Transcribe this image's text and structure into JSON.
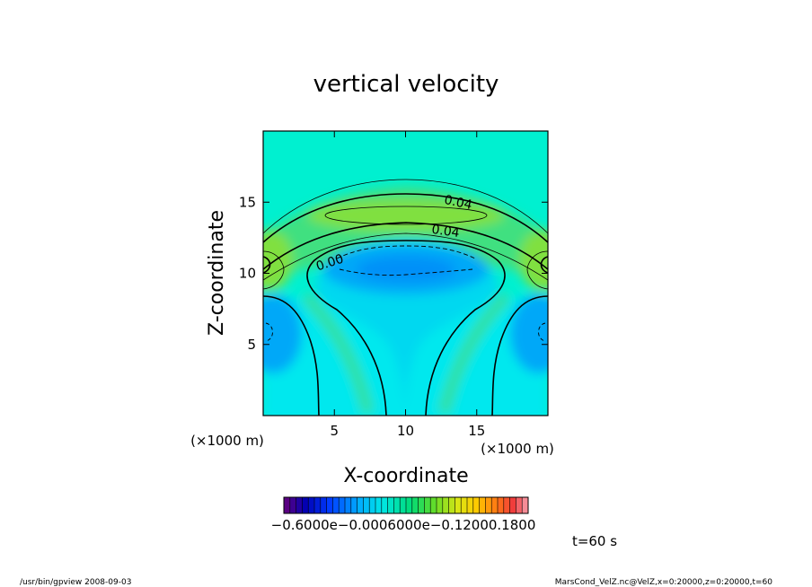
{
  "chart_data": {
    "type": "heatmap",
    "title": "vertical velocity",
    "xlabel": "X-coordinate",
    "ylabel": "Z-coordinate",
    "xunit": "(×1000 m)",
    "yunit": "(×1000 m)",
    "xlim": [
      0,
      20
    ],
    "ylim": [
      0,
      20
    ],
    "xticks": [
      5,
      10,
      15
    ],
    "yticks": [
      5,
      10,
      15
    ],
    "contour_labels": [
      {
        "text": "0.04",
        "x": 14.7,
        "z": 14.8
      },
      {
        "text": "0.04",
        "x": 12.8,
        "z": 12.9
      },
      {
        "text": "0.00",
        "x": 4.5,
        "z": 10.6
      }
    ],
    "colorbar": {
      "min": -0.06,
      "max": 0.18,
      "tick_text": "−0.6000e−0.0006000e−0.12000.1800"
    },
    "annotation": "t=60 s"
  },
  "footer": {
    "left": "/usr/bin/gpview   2008-09-03",
    "right": "MarsCond_VelZ.nc@VelZ,x=0:20000,z=0:20000,t=60"
  }
}
